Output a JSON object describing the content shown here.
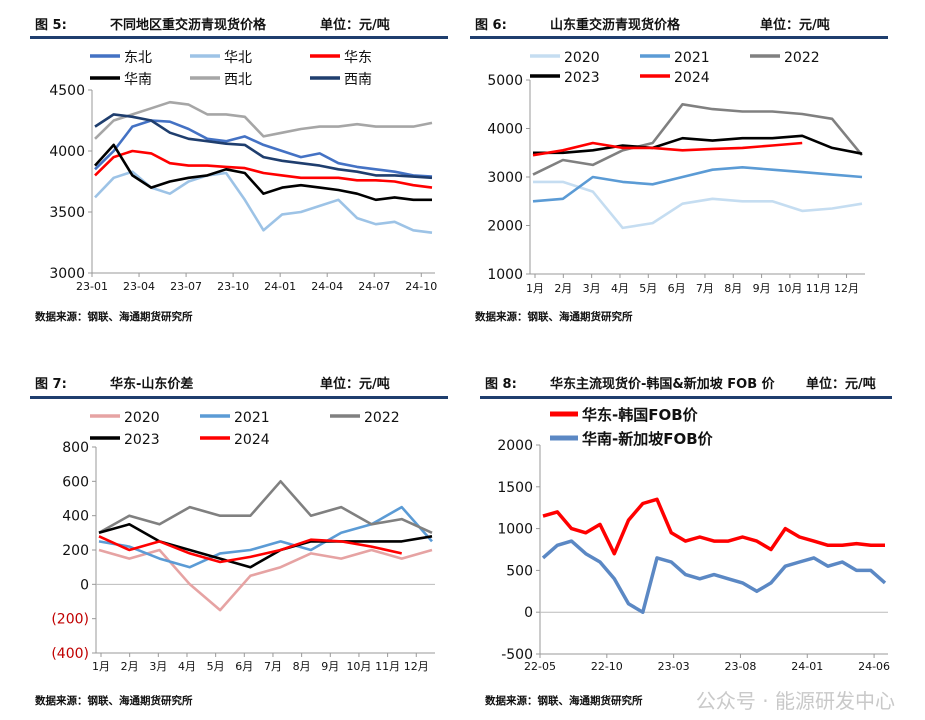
{
  "panels": [
    {
      "id": "p5",
      "fig": "图 5:",
      "title": "不同地区重交沥青现货价格",
      "unit": "单位：元/吨",
      "source": "数据来源：钢联、海通期货研究所"
    },
    {
      "id": "p6",
      "fig": "图 6:",
      "title": "山东重交沥青现货价格",
      "unit": "单位：元/吨",
      "source": "数据来源：钢联、海通期货研究所"
    },
    {
      "id": "p7",
      "fig": "图 7:",
      "title": "华东-山东价差",
      "unit": "单位：元/吨",
      "source": "数据来源：钢联、海通期货研究所"
    },
    {
      "id": "p8",
      "fig": "图 8:",
      "title": "华东主流现货价-韩国&新加坡 FOB 价",
      "unit": "单位：元/吨",
      "source": "数据来源：钢联、海通期货研究所"
    }
  ],
  "watermark": "公众号 · 能源研发中心",
  "chart_data": [
    {
      "type": "line",
      "x_ticks": [
        "23-01",
        "23-04",
        "23-07",
        "23-10",
        "24-01",
        "24-04",
        "24-07",
        "24-10"
      ],
      "y_ticks": [
        "3000",
        "3500",
        "4000",
        "4500"
      ],
      "ylim": [
        3000,
        4500
      ],
      "legend_position": "top",
      "series": [
        {
          "name": "东北",
          "color": "#4472c4",
          "values": [
            3850,
            4000,
            4200,
            4250,
            4240,
            4180,
            4100,
            4080,
            4120,
            4050,
            4000,
            3950,
            3980,
            3900,
            3870,
            3850,
            3830,
            3800,
            3790
          ]
        },
        {
          "name": "华北",
          "color": "#9dc3e6",
          "values": [
            3620,
            3780,
            3830,
            3700,
            3650,
            3750,
            3800,
            3820,
            3600,
            3350,
            3480,
            3500,
            3550,
            3600,
            3450,
            3400,
            3420,
            3350,
            3330
          ]
        },
        {
          "name": "华东",
          "color": "#ff0000",
          "values": [
            3800,
            3950,
            4000,
            3980,
            3900,
            3880,
            3880,
            3870,
            3860,
            3820,
            3800,
            3780,
            3780,
            3780,
            3760,
            3760,
            3750,
            3720,
            3700
          ]
        },
        {
          "name": "华南",
          "color": "#000000",
          "values": [
            3880,
            4050,
            3800,
            3700,
            3750,
            3780,
            3800,
            3850,
            3820,
            3650,
            3700,
            3720,
            3700,
            3680,
            3650,
            3600,
            3620,
            3600,
            3600
          ]
        },
        {
          "name": "西北",
          "color": "#a6a6a6",
          "values": [
            4100,
            4250,
            4300,
            4350,
            4400,
            4380,
            4300,
            4300,
            4280,
            4120,
            4150,
            4180,
            4200,
            4200,
            4220,
            4200,
            4200,
            4200,
            4230
          ]
        },
        {
          "name": "西南",
          "color": "#1f3e6e",
          "values": [
            4200,
            4300,
            4280,
            4250,
            4150,
            4100,
            4080,
            4060,
            4050,
            3950,
            3920,
            3900,
            3880,
            3850,
            3830,
            3800,
            3800,
            3790,
            3780
          ]
        }
      ]
    },
    {
      "type": "line",
      "x_ticks": [
        "1月",
        "2月",
        "3月",
        "4月",
        "5月",
        "6月",
        "7月",
        "8月",
        "9月",
        "10月",
        "11月",
        "12月"
      ],
      "y_ticks": [
        "1000",
        "2000",
        "3000",
        "4000",
        "5000"
      ],
      "ylim": [
        1000,
        5000
      ],
      "legend_position": "top",
      "series": [
        {
          "name": "2020",
          "color": "#c5ddf1",
          "values": [
            2900,
            2900,
            2700,
            1950,
            2050,
            2450,
            2550,
            2500,
            2500,
            2300,
            2350,
            2450
          ]
        },
        {
          "name": "2021",
          "color": "#5b9bd5",
          "values": [
            2500,
            2550,
            3000,
            2900,
            2850,
            3000,
            3150,
            3200,
            3150,
            3100,
            3050,
            3000
          ]
        },
        {
          "name": "2022",
          "color": "#808080",
          "values": [
            3050,
            3350,
            3250,
            3550,
            3700,
            4500,
            4400,
            4350,
            4350,
            4300,
            4200,
            3450
          ]
        },
        {
          "name": "2023",
          "color": "#000000",
          "values": [
            3500,
            3500,
            3550,
            3650,
            3600,
            3800,
            3750,
            3800,
            3800,
            3850,
            3600,
            3480
          ]
        },
        {
          "name": "2024",
          "color": "#ff0000",
          "values": [
            3450,
            3550,
            3700,
            3600,
            3600,
            3550,
            3580,
            3600,
            3650,
            3700
          ]
        }
      ]
    },
    {
      "type": "line",
      "x_ticks": [
        "1月",
        "2月",
        "3月",
        "4月",
        "5月",
        "6月",
        "7月",
        "8月",
        "9月",
        "10月",
        "11月",
        "12月"
      ],
      "y_ticks": [
        "(400)",
        "(200)",
        "0",
        "200",
        "400",
        "600",
        "800"
      ],
      "ylim": [
        -400,
        800
      ],
      "legend_position": "top",
      "series": [
        {
          "name": "2020",
          "color": "#e6a3a3",
          "values": [
            200,
            150,
            200,
            0,
            -150,
            50,
            100,
            180,
            150,
            200,
            150,
            200
          ]
        },
        {
          "name": "2021",
          "color": "#5b9bd5",
          "values": [
            250,
            220,
            150,
            100,
            180,
            200,
            250,
            200,
            300,
            350,
            450,
            250
          ]
        },
        {
          "name": "2022",
          "color": "#808080",
          "values": [
            300,
            400,
            350,
            450,
            400,
            400,
            600,
            400,
            450,
            350,
            380,
            300
          ]
        },
        {
          "name": "2023",
          "color": "#000000",
          "values": [
            300,
            350,
            250,
            200,
            150,
            100,
            200,
            250,
            250,
            250,
            250,
            280
          ]
        },
        {
          "name": "2024",
          "color": "#ff0000",
          "values": [
            280,
            200,
            250,
            180,
            130,
            160,
            200,
            260,
            250,
            220,
            180
          ]
        }
      ]
    },
    {
      "type": "line",
      "x_ticks": [
        "22-05",
        "22-10",
        "23-03",
        "23-08",
        "24-01",
        "24-06"
      ],
      "y_ticks": [
        "-500",
        "0",
        "500",
        "1000",
        "1500",
        "2000"
      ],
      "ylim": [
        -500,
        2000
      ],
      "legend_position": "top-left",
      "series": [
        {
          "name": "华东-韩国FOB价",
          "color": "#ff0000",
          "values": [
            1150,
            1200,
            1000,
            950,
            1050,
            700,
            1100,
            1300,
            1350,
            950,
            850,
            900,
            850,
            850,
            900,
            850,
            750,
            1000,
            900,
            850,
            800,
            800,
            820,
            800,
            800
          ]
        },
        {
          "name": "华南-新加坡FOB价",
          "color": "#5b88c4",
          "values": [
            650,
            800,
            850,
            700,
            600,
            400,
            100,
            0,
            650,
            600,
            450,
            400,
            450,
            400,
            350,
            250,
            350,
            550,
            600,
            650,
            550,
            600,
            500,
            500,
            350
          ]
        }
      ]
    }
  ]
}
